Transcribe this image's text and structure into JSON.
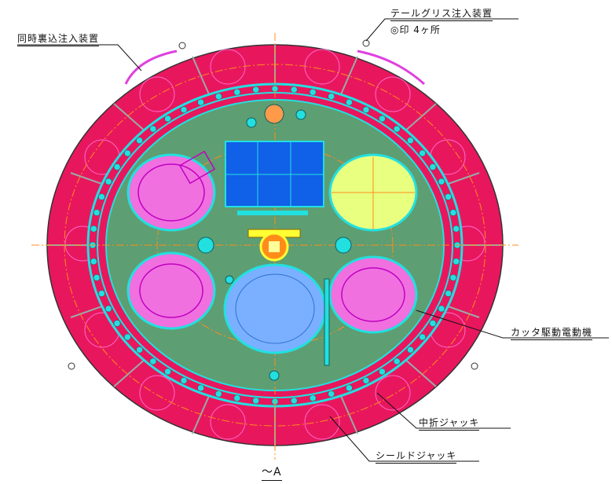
{
  "labels": {
    "simultaneous_backfill": "同時裏込注入装置",
    "tail_grease": "テールグリス注入装置",
    "tail_grease_note": "◎印 4ヶ所",
    "cutter_motor": "カッタ駆動電動機",
    "articulation_jack": "中折ジャッキ",
    "shield_jack": "シールドジャッキ",
    "view": "～A"
  },
  "colors": {
    "ring": "#e8175d",
    "plate": "#5e9e73",
    "cyan": "#22e0e0",
    "magenta_fill": "#f070e0",
    "yellow_fill": "#e8ff80",
    "blue_fill": "#7ab0ff",
    "dark_blue": "#1060e8",
    "orange": "#ff8c1a"
  }
}
